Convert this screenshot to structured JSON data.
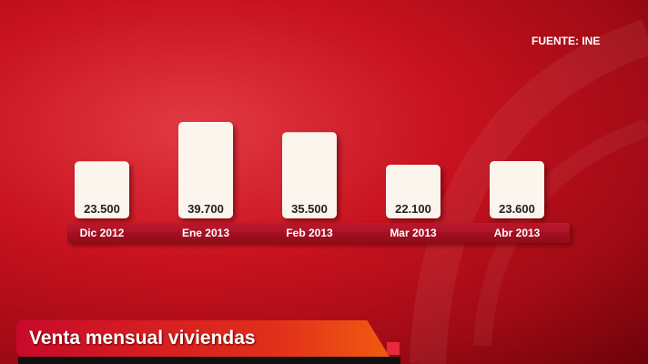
{
  "source": "FUENTE: INE",
  "title": "Venta mensual viviendas",
  "colors": {
    "background": "#c8121f",
    "bar": "#fbf5ee",
    "axis_band": "#a80d20",
    "title_band": "#e2301a"
  },
  "chart_data": {
    "type": "bar",
    "title": "Venta mensual viviendas",
    "categories": [
      "Dic 2012",
      "Ene 2013",
      "Feb 2013",
      "Mar 2013",
      "Abr 2013"
    ],
    "values": [
      23500,
      39700,
      35500,
      22100,
      23600
    ],
    "labels": [
      "23.500",
      "39.700",
      "35.500",
      "22.100",
      "23.600"
    ],
    "ylim": [
      0,
      40000
    ],
    "grid": false
  }
}
